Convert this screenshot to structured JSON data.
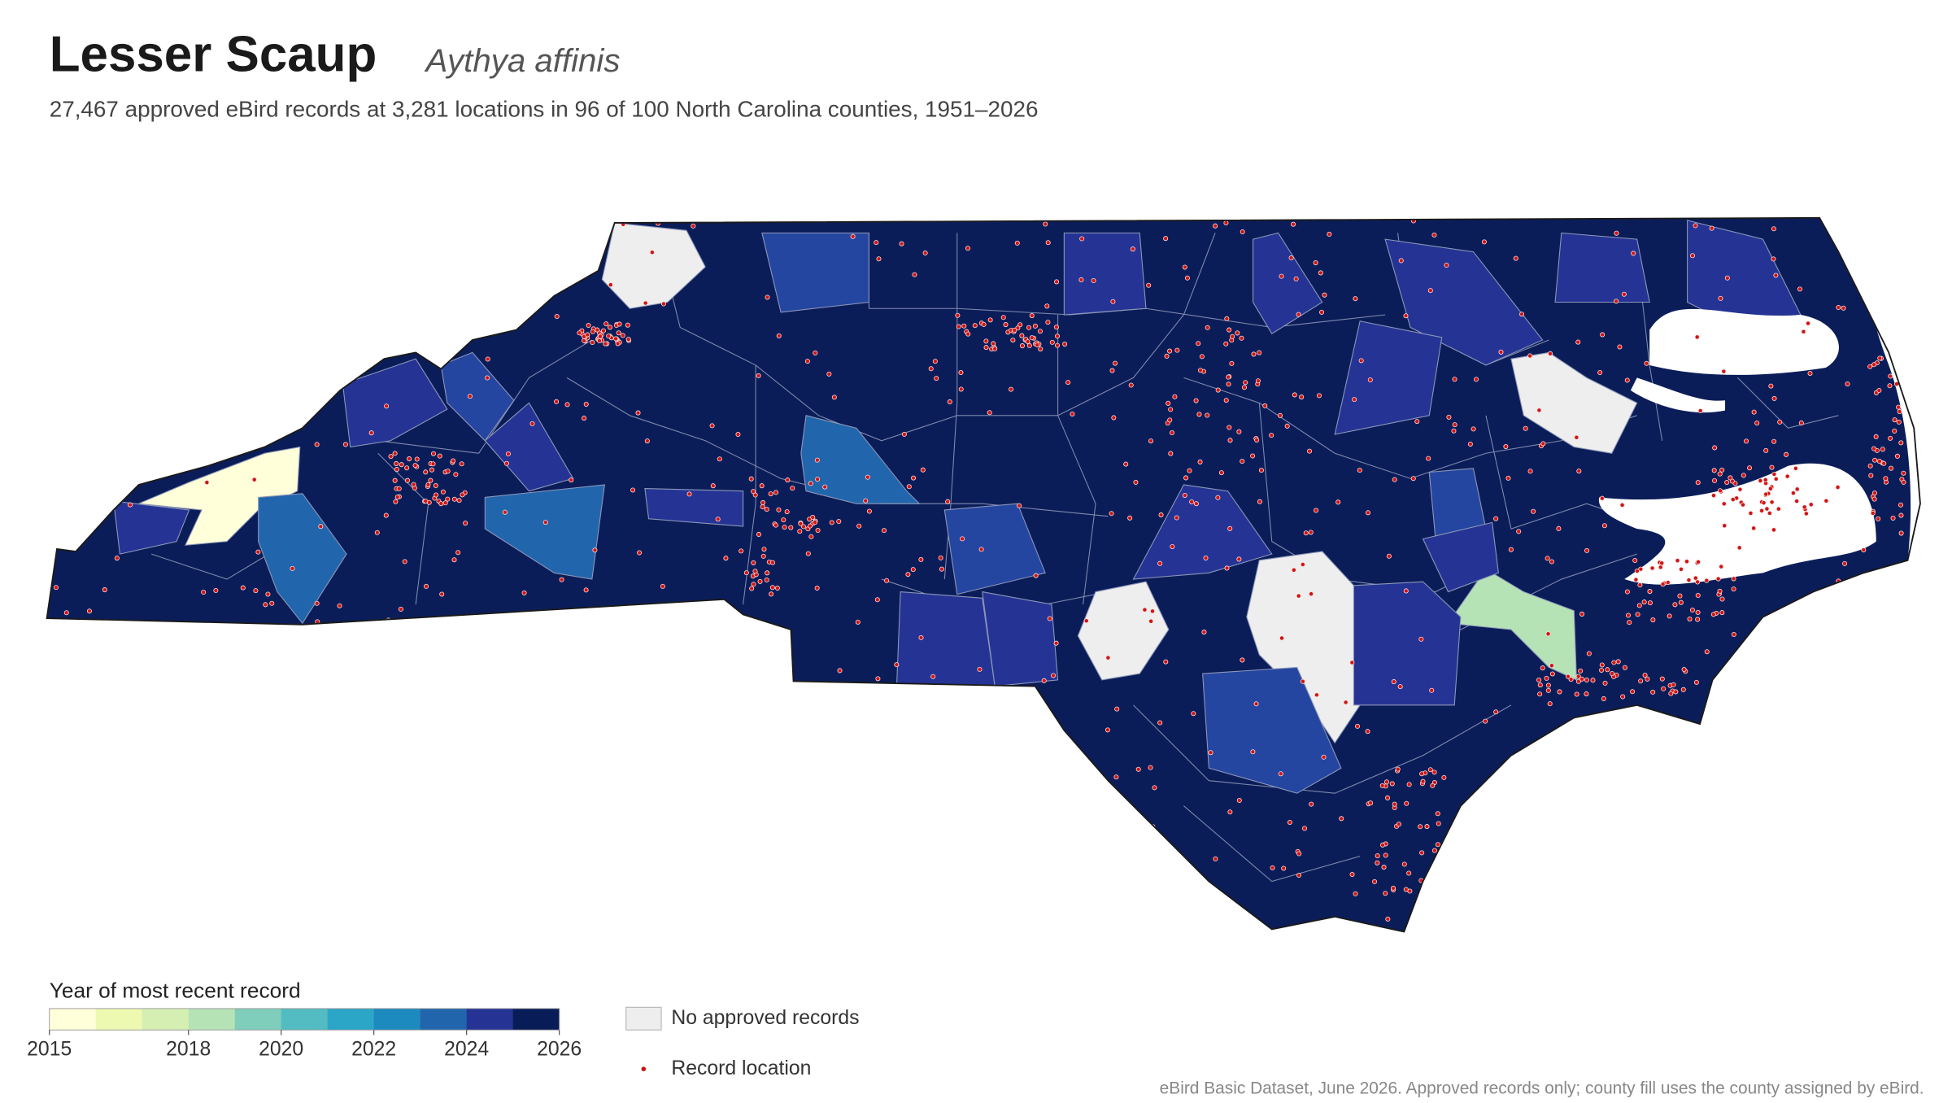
{
  "header": {
    "title": "Lesser Scaup",
    "scientific_name": "Aythya affinis",
    "subtitle": "27,467 approved eBird records at 3,281 locations in 96 of 100 North Carolina counties, 1951–2026"
  },
  "legend": {
    "title": "Year of most recent record",
    "range": [
      2015,
      2026
    ],
    "ticks": [
      2015,
      2018,
      2020,
      2022,
      2024,
      2026
    ],
    "colors": [
      "#ffffd9",
      "#edf8b1",
      "#d5efb3",
      "#b6e3b6",
      "#7fcdbb",
      "#52bcc2",
      "#2ca6c6",
      "#1d8abf",
      "#2166ac",
      "#253494",
      "#081d58"
    ],
    "no_records_label": "No approved records",
    "record_label": "Record location"
  },
  "source": "eBird Basic Dataset, June 2026. Approved records only; county fill uses the county assigned by eBird."
}
